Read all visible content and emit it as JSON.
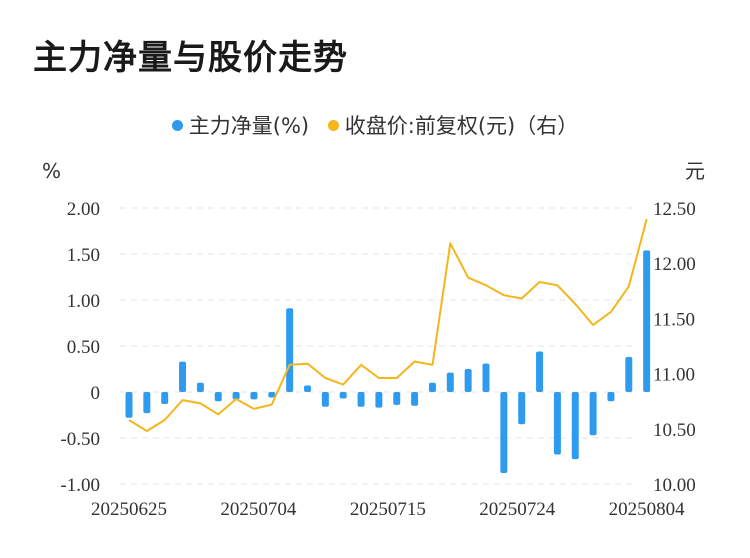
{
  "title": "主力净量与股价走势",
  "colors": {
    "bar": "#2f9bef",
    "line": "#f3b71c",
    "grid": "#e6e6e6",
    "text": "#333333"
  },
  "legend": [
    {
      "label": "主力净量(%)",
      "color": "#2f9bef"
    },
    {
      "label": "收盘价:前复权(元)（右）",
      "color": "#f3b71c"
    }
  ],
  "chart_data": {
    "type": "bar",
    "left_unit": "%",
    "right_unit": "元",
    "y_left": {
      "min": -1.0,
      "max": 2.0,
      "ticks": [
        "2.00",
        "1.50",
        "1.00",
        "0.50",
        "0",
        "-0.50",
        "-1.00"
      ]
    },
    "y_right": {
      "min": 10.0,
      "max": 12.5,
      "ticks": [
        "12.50",
        "12.00",
        "11.50",
        "11.00",
        "10.50",
        "10.00"
      ]
    },
    "x_tick_labels": [
      "20250625",
      "20250704",
      "20250715",
      "20250724",
      "20250804"
    ],
    "x_tick_index": [
      0,
      9,
      18,
      27,
      36
    ],
    "series": [
      {
        "name": "主力净量(%)",
        "type": "bar",
        "axis": "left",
        "values": [
          -0.28,
          -0.23,
          -0.13,
          0.33,
          0.1,
          -0.1,
          -0.08,
          -0.08,
          -0.06,
          0.91,
          0.07,
          -0.16,
          -0.07,
          -0.16,
          -0.17,
          -0.14,
          -0.15,
          0.1,
          0.21,
          0.25,
          0.31,
          -0.88,
          -0.35,
          0.44,
          -0.68,
          -0.73,
          -0.47,
          -0.1,
          0.38,
          1.54
        ]
      },
      {
        "name": "收盘价:前复权(元)（右）",
        "type": "line",
        "axis": "right",
        "values": [
          10.58,
          10.48,
          10.58,
          10.76,
          10.73,
          10.63,
          10.77,
          10.68,
          10.72,
          11.08,
          11.09,
          10.96,
          10.9,
          11.08,
          10.96,
          10.96,
          11.11,
          11.08,
          12.18,
          11.87,
          11.8,
          11.71,
          11.68,
          11.83,
          11.8,
          11.63,
          11.44,
          11.56,
          11.79,
          12.4
        ]
      }
    ],
    "x_index": [
      0,
      1,
      2,
      3,
      4,
      5,
      6,
      7,
      8,
      9,
      10,
      11,
      12,
      13,
      14,
      15,
      16,
      17,
      18,
      19,
      20,
      21,
      22,
      23,
      24,
      25,
      26,
      27,
      28,
      29
    ]
  }
}
